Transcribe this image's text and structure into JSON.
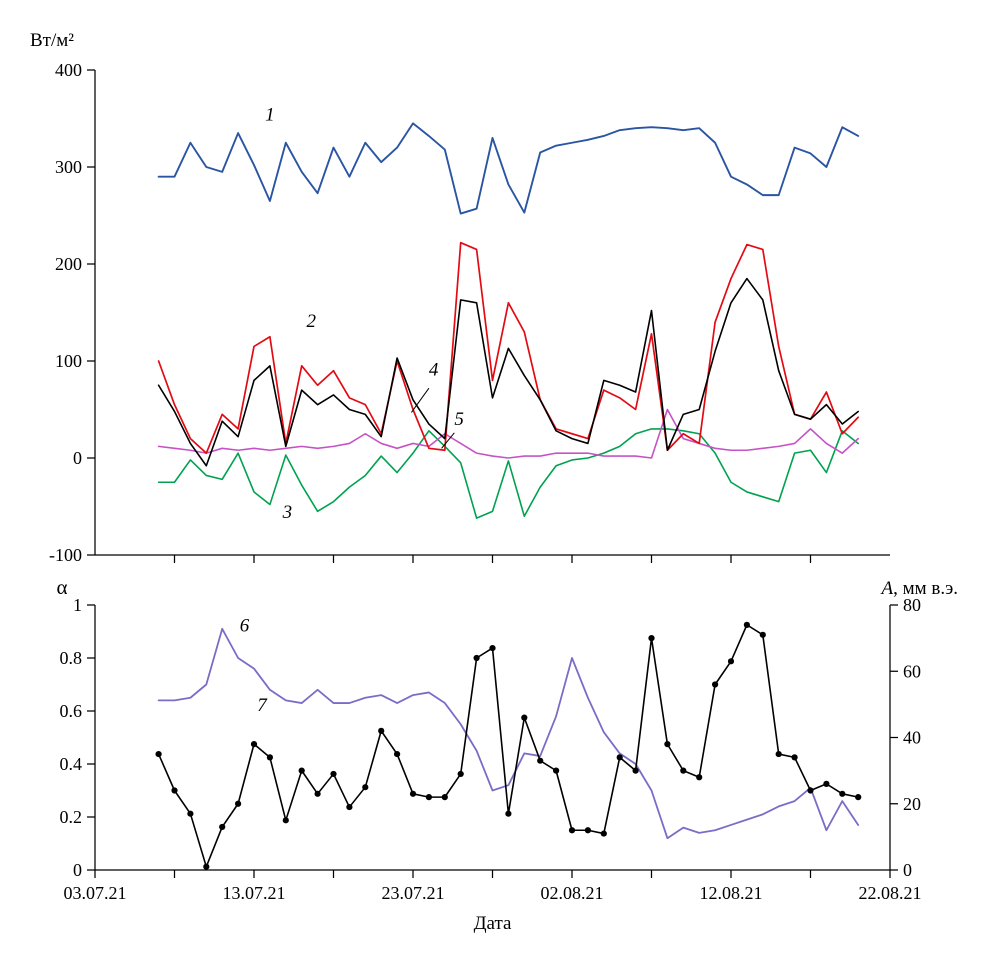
{
  "figure_name": "radiation-balance-and-albedo-time-series",
  "xaxis": {
    "label": "Дата",
    "domain": [
      0,
      50
    ],
    "start_date": "03.07.21",
    "major_tick_days": [
      0,
      10,
      20,
      30,
      40,
      50
    ],
    "major_tick_labels": [
      "03.07.21",
      "13.07.21",
      "23.07.21",
      "02.08.21",
      "12.08.21",
      "22.08.21"
    ],
    "minor_tick_days": [
      5,
      15,
      25,
      35,
      45
    ]
  },
  "chart_data": [
    {
      "type": "line",
      "panel": "top",
      "ylabel": "Вт/м²",
      "ylim": [
        -100,
        400
      ],
      "ytick_values": [
        400,
        300,
        200,
        100,
        0,
        -100
      ],
      "ytick_labels": [
        "400",
        "300",
        "200",
        "100",
        "0",
        "-100"
      ],
      "x_days": [
        4,
        5,
        6,
        7,
        8,
        9,
        10,
        11,
        12,
        13,
        14,
        15,
        16,
        17,
        18,
        19,
        20,
        21,
        22,
        23,
        24,
        25,
        26,
        27,
        28,
        29,
        30,
        31,
        32,
        33,
        34,
        35,
        36,
        37,
        38,
        39,
        40,
        41,
        42,
        43,
        44,
        45,
        46,
        47,
        48
      ],
      "series": [
        {
          "tag": "1",
          "color": "#2a55a3",
          "width": 1.9,
          "values": [
            290,
            290,
            325,
            300,
            295,
            335,
            302,
            265,
            325,
            295,
            273,
            320,
            290,
            325,
            305,
            320,
            345,
            332,
            318,
            252,
            257,
            330,
            282,
            253,
            315,
            322,
            325,
            328,
            332,
            338,
            340,
            341,
            340,
            338,
            340,
            325,
            290,
            282,
            271,
            271,
            320,
            314,
            300,
            341,
            332
          ],
          "tag_pos": {
            "day": 11.0,
            "v": 348
          }
        },
        {
          "tag": "2",
          "color": "#e30b13",
          "width": 1.7,
          "values": [
            100,
            55,
            20,
            5,
            45,
            30,
            115,
            125,
            15,
            95,
            75,
            90,
            62,
            55,
            25,
            100,
            50,
            10,
            8,
            222,
            215,
            80,
            160,
            130,
            60,
            30,
            25,
            20,
            70,
            62,
            50,
            128,
            8,
            25,
            15,
            140,
            185,
            220,
            215,
            115,
            45,
            40,
            68,
            25,
            42
          ],
          "tag_pos": {
            "day": 13.6,
            "v": 135
          }
        },
        {
          "tag": "3",
          "color": "#00a24f",
          "width": 1.6,
          "values": [
            -25,
            -25,
            -2,
            -18,
            -22,
            5,
            -35,
            -48,
            3,
            -28,
            -55,
            -45,
            -30,
            -18,
            2,
            -15,
            5,
            28,
            12,
            -5,
            -62,
            -55,
            -3,
            -60,
            -30,
            -8,
            -2,
            0,
            5,
            12,
            25,
            30,
            30,
            28,
            25,
            5,
            -25,
            -35,
            -40,
            -45,
            5,
            8,
            -15,
            28,
            15
          ],
          "tag_pos": {
            "day": 12.1,
            "v": -62
          }
        },
        {
          "tag": "4",
          "color": "#000000",
          "width": 1.6,
          "values": [
            75,
            48,
            15,
            -8,
            38,
            22,
            80,
            95,
            12,
            70,
            55,
            65,
            50,
            45,
            22,
            103,
            60,
            35,
            20,
            163,
            160,
            62,
            113,
            85,
            60,
            28,
            20,
            15,
            80,
            75,
            68,
            152,
            8,
            45,
            50,
            110,
            160,
            185,
            163,
            90,
            45,
            40,
            55,
            35,
            48
          ],
          "tag_pos": {
            "day": 21.3,
            "v": 85
          },
          "leader": [
            [
              21.0,
              72
            ],
            [
              19.9,
              47
            ]
          ]
        },
        {
          "tag": "5",
          "color": "#c653c6",
          "width": 1.6,
          "values": [
            12,
            10,
            8,
            5,
            10,
            8,
            10,
            8,
            10,
            12,
            10,
            12,
            15,
            25,
            15,
            10,
            15,
            12,
            25,
            15,
            5,
            2,
            0,
            2,
            2,
            5,
            5,
            5,
            2,
            2,
            2,
            0,
            50,
            20,
            15,
            10,
            8,
            8,
            10,
            12,
            15,
            30,
            15,
            5,
            20
          ],
          "tag_pos": {
            "day": 22.9,
            "v": 34
          },
          "leader": [
            [
              22.6,
              26
            ],
            [
              21.8,
              10
            ]
          ]
        }
      ]
    },
    {
      "type": "line",
      "panel": "bottom",
      "ylabel_left": "α",
      "ylabel_right_italic": "A",
      "ylabel_right_rest": ", мм в.э.",
      "ylim_left": [
        0,
        1
      ],
      "ylim_right": [
        0,
        80
      ],
      "ytick_values_left": [
        1,
        0.8,
        0.6,
        0.4,
        0.2,
        0
      ],
      "ytick_labels_left": [
        "1",
        "0.8",
        "0.6",
        "0.4",
        "0.2",
        "0"
      ],
      "ytick_values_right": [
        80,
        60,
        40,
        20,
        0
      ],
      "ytick_labels_right": [
        "80",
        "60",
        "40",
        "20",
        "0"
      ],
      "x_days": [
        4,
        5,
        6,
        7,
        8,
        9,
        10,
        11,
        12,
        13,
        14,
        15,
        16,
        17,
        18,
        19,
        20,
        21,
        22,
        23,
        24,
        25,
        26,
        27,
        28,
        29,
        30,
        31,
        32,
        33,
        34,
        35,
        36,
        37,
        38,
        39,
        40,
        41,
        42,
        43,
        44,
        45,
        46,
        47,
        48
      ],
      "series": [
        {
          "tag": "6",
          "axis": "left",
          "color": "#7b6cc7",
          "width": 1.8,
          "values": [
            0.64,
            0.64,
            0.65,
            0.7,
            0.91,
            0.8,
            0.76,
            0.68,
            0.64,
            0.63,
            0.68,
            0.63,
            0.63,
            0.65,
            0.66,
            0.63,
            0.66,
            0.67,
            0.63,
            0.55,
            0.45,
            0.3,
            0.32,
            0.44,
            0.43,
            0.58,
            0.8,
            0.65,
            0.52,
            0.44,
            0.4,
            0.3,
            0.12,
            0.16,
            0.14,
            0.15,
            0.17,
            0.19,
            0.21,
            0.24,
            0.26,
            0.31,
            0.15,
            0.26,
            0.17
          ],
          "tag_pos": {
            "day": 9.4,
            "v": 0.9
          }
        },
        {
          "tag": "7",
          "axis": "right",
          "color": "#000000",
          "width": 1.6,
          "marker": "circle",
          "values": [
            35,
            24,
            17,
            1,
            13,
            20,
            38,
            34,
            15,
            30,
            23,
            29,
            19,
            25,
            42,
            35,
            23,
            22,
            22,
            29,
            64,
            67,
            17,
            46,
            33,
            30,
            12,
            12,
            11,
            34,
            30,
            70,
            38,
            30,
            28,
            56,
            63,
            74,
            71,
            35,
            34,
            24,
            26,
            23,
            22
          ],
          "tag_pos": {
            "day": 10.5,
            "v": 48
          }
        }
      ]
    }
  ]
}
